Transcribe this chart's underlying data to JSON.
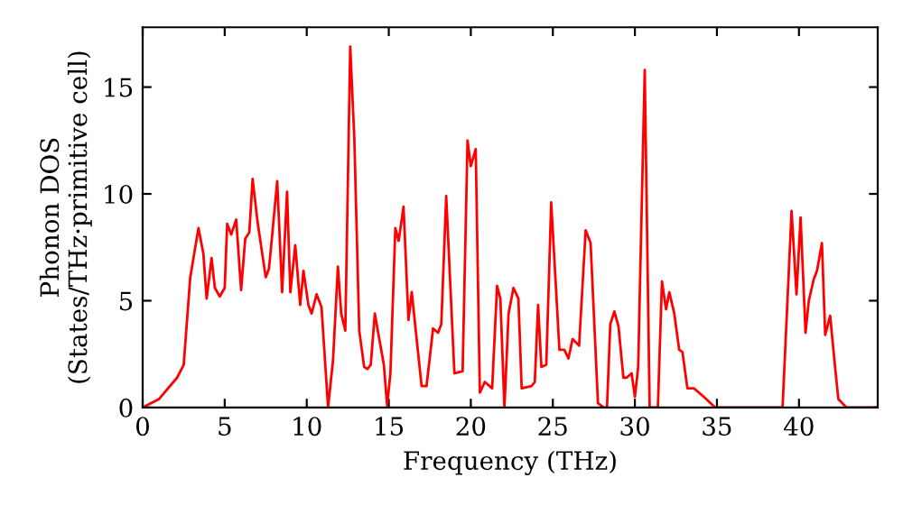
{
  "chart_data": {
    "type": "line",
    "xlabel": "Frequency (THz)",
    "ylabel": "Phonon DOS\n(States/THz·primitive cell)",
    "xlim": [
      0,
      44.8
    ],
    "ylim": [
      0,
      17.8
    ],
    "xticks": [
      0,
      5,
      10,
      15,
      20,
      25,
      30,
      35,
      40
    ],
    "yticks": [
      0,
      5,
      10,
      15
    ],
    "grid": false,
    "marker": "none",
    "line_style": "solid",
    "series": [
      {
        "color": "#ff0000",
        "x": [
          0,
          1.0,
          2.1,
          2.5,
          2.9,
          3.4,
          3.7,
          3.9,
          4.2,
          4.4,
          4.7,
          5.0,
          5.15,
          5.4,
          5.7,
          6.0,
          6.25,
          6.5,
          6.7,
          7.0,
          7.5,
          7.7,
          8.2,
          8.5,
          8.8,
          9.0,
          9.3,
          9.6,
          9.8,
          10.1,
          10.3,
          10.6,
          10.9,
          11.3,
          11.6,
          11.9,
          12.1,
          12.35,
          12.65,
          12.9,
          13.2,
          13.5,
          13.7,
          13.9,
          14.15,
          14.4,
          14.7,
          14.9,
          15.1,
          15.4,
          15.6,
          15.9,
          16.2,
          16.4,
          17.0,
          17.3,
          17.7,
          18.0,
          18.2,
          18.5,
          19.0,
          19.5,
          19.8,
          20.0,
          20.3,
          20.55,
          20.85,
          21.3,
          21.6,
          21.8,
          22.05,
          22.3,
          22.6,
          22.9,
          23.1,
          23.7,
          23.9,
          24.1,
          24.3,
          24.6,
          24.9,
          25.4,
          25.7,
          25.95,
          26.2,
          26.6,
          27.0,
          27.3,
          27.75,
          28.1,
          28.3,
          28.5,
          28.75,
          29.0,
          29.3,
          29.5,
          29.8,
          30.0,
          30.2,
          30.6,
          30.9,
          31.4,
          31.65,
          31.9,
          32.1,
          32.4,
          32.7,
          32.9,
          33.2,
          33.6,
          34.2,
          34.9,
          39.0,
          39.55,
          39.85,
          40.1,
          40.4,
          40.6,
          40.9,
          41.1,
          41.4,
          41.6,
          41.9,
          42.2,
          42.4,
          42.9,
          44.8
        ],
        "values": [
          0,
          0.4,
          1.4,
          2.0,
          6.1,
          8.4,
          7.2,
          5.1,
          7.0,
          5.6,
          5.2,
          5.6,
          8.6,
          8.1,
          8.8,
          5.5,
          7.9,
          8.2,
          10.7,
          8.7,
          6.1,
          6.5,
          10.6,
          5.4,
          10.1,
          5.4,
          7.6,
          4.8,
          6.4,
          4.8,
          4.4,
          5.3,
          4.7,
          0,
          2.2,
          6.6,
          4.4,
          3.6,
          16.9,
          12.6,
          3.6,
          1.9,
          1.8,
          2.0,
          4.4,
          3.3,
          2.0,
          0.1,
          1.6,
          8.4,
          7.8,
          9.4,
          4.1,
          5.4,
          1.0,
          1.0,
          3.7,
          3.5,
          3.9,
          9.9,
          1.6,
          1.7,
          12.5,
          11.3,
          12.1,
          0.7,
          1.2,
          0.9,
          5.7,
          5.1,
          0,
          4.4,
          5.6,
          5.1,
          0.9,
          1.0,
          1.2,
          4.8,
          1.9,
          2.0,
          9.6,
          2.7,
          2.7,
          2.3,
          3.2,
          2.9,
          8.3,
          7.7,
          0.2,
          0,
          0,
          3.9,
          4.5,
          3.8,
          1.4,
          1.4,
          1.6,
          0.5,
          1.9,
          15.8,
          0,
          0,
          5.9,
          4.6,
          5.4,
          4.4,
          2.7,
          2.6,
          0.9,
          0.9,
          0.5,
          0,
          0,
          9.2,
          5.3,
          8.9,
          3.5,
          5.0,
          6.0,
          6.4,
          7.7,
          3.4,
          4.3,
          1.9,
          0.4,
          0,
          0
        ]
      }
    ]
  }
}
